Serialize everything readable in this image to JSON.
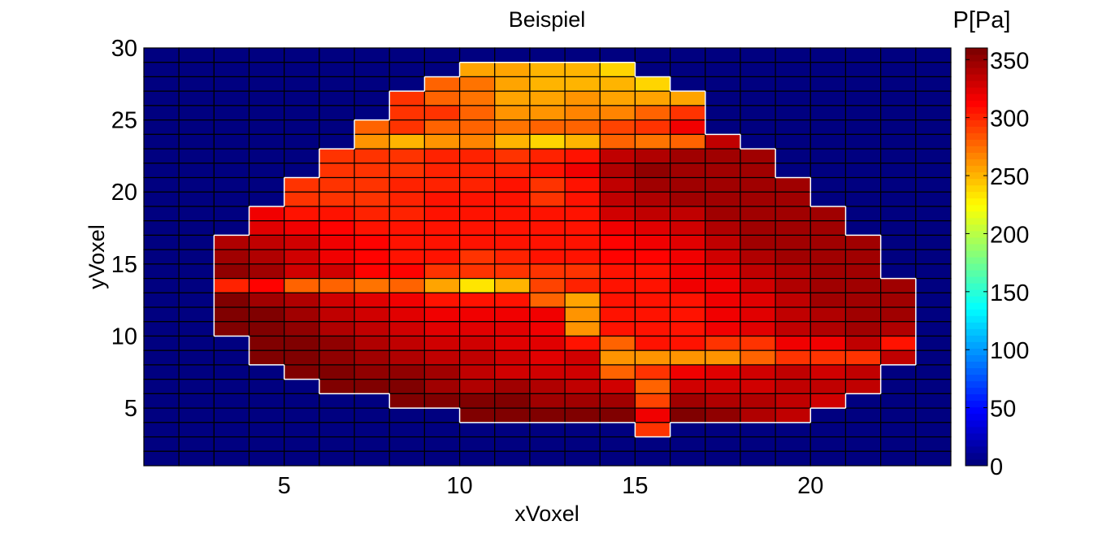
{
  "chart_data": {
    "type": "heatmap",
    "title": "Beispiel",
    "xlabel": "xVoxel",
    "ylabel": "yVoxel",
    "xlim": [
      1,
      24
    ],
    "ylim": [
      1,
      30
    ],
    "xticks": [
      5,
      10,
      15,
      20
    ],
    "yticks": [
      5,
      10,
      15,
      20,
      25,
      30
    ],
    "colormap": "jet",
    "clim": [
      0,
      360
    ],
    "colorbar": {
      "label": "P[Pa]",
      "ticks": [
        0,
        50,
        100,
        150,
        200,
        250,
        300,
        350
      ]
    },
    "grid": true,
    "values": [
      [
        0,
        0,
        0,
        0,
        0,
        0,
        0,
        0,
        0,
        0,
        0,
        0,
        0,
        0,
        0,
        0,
        0,
        0,
        0,
        0,
        0,
        0,
        0
      ],
      [
        0,
        0,
        0,
        0,
        0,
        0,
        0,
        0,
        0,
        258,
        256,
        253,
        250,
        241,
        0,
        0,
        0,
        0,
        0,
        0,
        0,
        0,
        0
      ],
      [
        0,
        0,
        0,
        0,
        0,
        0,
        0,
        0,
        281,
        270,
        258,
        253,
        253,
        248,
        241,
        0,
        0,
        0,
        0,
        0,
        0,
        0,
        0
      ],
      [
        0,
        0,
        0,
        0,
        0,
        0,
        0,
        293,
        281,
        273,
        258,
        258,
        261,
        256,
        258,
        258,
        0,
        0,
        0,
        0,
        0,
        0,
        0
      ],
      [
        0,
        0,
        0,
        0,
        0,
        0,
        0,
        298,
        293,
        281,
        264,
        264,
        267,
        267,
        276,
        293,
        0,
        0,
        0,
        0,
        0,
        0,
        0
      ],
      [
        0,
        0,
        0,
        0,
        0,
        0,
        281,
        293,
        276,
        276,
        270,
        276,
        281,
        287,
        293,
        315,
        0,
        0,
        0,
        0,
        0,
        0,
        0
      ],
      [
        0,
        0,
        0,
        0,
        0,
        0,
        264,
        253,
        264,
        267,
        250,
        238,
        248,
        276,
        273,
        276,
        333,
        0,
        0,
        0,
        0,
        0,
        0
      ],
      [
        0,
        0,
        0,
        0,
        0,
        298,
        298,
        298,
        301,
        301,
        298,
        301,
        308,
        333,
        339,
        345,
        345,
        345,
        0,
        0,
        0,
        0,
        0
      ],
      [
        0,
        0,
        0,
        0,
        0,
        298,
        298,
        298,
        301,
        301,
        301,
        304,
        315,
        339,
        351,
        345,
        345,
        345,
        0,
        0,
        0,
        0,
        0
      ],
      [
        0,
        0,
        0,
        0,
        295,
        298,
        298,
        301,
        301,
        301,
        304,
        298,
        308,
        333,
        345,
        345,
        345,
        345,
        345,
        0,
        0,
        0,
        0
      ],
      [
        0,
        0,
        0,
        0,
        298,
        298,
        298,
        301,
        304,
        304,
        304,
        298,
        304,
        333,
        339,
        345,
        345,
        345,
        345,
        0,
        0,
        0,
        0
      ],
      [
        0,
        0,
        0,
        315,
        307,
        304,
        301,
        301,
        304,
        307,
        307,
        304,
        305,
        327,
        333,
        333,
        345,
        345,
        345,
        345,
        0,
        0,
        0
      ],
      [
        0,
        0,
        0,
        321,
        315,
        310,
        307,
        307,
        307,
        307,
        307,
        307,
        307,
        315,
        321,
        327,
        339,
        345,
        345,
        345,
        0,
        0,
        0
      ],
      [
        0,
        0,
        339,
        333,
        327,
        315,
        310,
        307,
        307,
        307,
        307,
        307,
        307,
        310,
        315,
        321,
        333,
        345,
        345,
        345,
        345,
        0,
        0
      ],
      [
        0,
        0,
        345,
        339,
        327,
        315,
        310,
        307,
        304,
        298,
        301,
        304,
        305,
        310,
        310,
        315,
        327,
        339,
        345,
        345,
        345,
        0,
        0
      ],
      [
        0,
        0,
        351,
        345,
        327,
        327,
        310,
        310,
        298,
        293,
        298,
        295,
        298,
        307,
        307,
        315,
        321,
        333,
        339,
        345,
        345,
        0,
        0
      ],
      [
        0,
        0,
        301,
        310,
        281,
        281,
        273,
        276,
        258,
        236,
        250,
        287,
        300,
        307,
        307,
        315,
        315,
        327,
        339,
        345,
        345,
        345,
        0
      ],
      [
        0,
        0,
        360,
        345,
        339,
        327,
        321,
        315,
        304,
        304,
        304,
        281,
        258,
        307,
        307,
        307,
        315,
        321,
        333,
        345,
        345,
        345,
        0
      ],
      [
        0,
        0,
        360,
        357,
        345,
        333,
        327,
        321,
        315,
        315,
        315,
        315,
        264,
        307,
        307,
        307,
        315,
        321,
        333,
        339,
        345,
        345,
        0
      ],
      [
        0,
        0,
        360,
        360,
        351,
        339,
        333,
        327,
        321,
        321,
        321,
        315,
        264,
        307,
        307,
        307,
        315,
        321,
        333,
        339,
        345,
        339,
        0
      ],
      [
        0,
        0,
        0,
        360,
        357,
        351,
        339,
        333,
        327,
        327,
        321,
        321,
        304,
        281,
        307,
        307,
        298,
        298,
        315,
        315,
        333,
        307,
        0
      ],
      [
        0,
        0,
        0,
        360,
        360,
        351,
        345,
        339,
        333,
        333,
        327,
        321,
        327,
        264,
        264,
        264,
        264,
        276,
        293,
        295,
        295,
        333,
        0
      ],
      [
        0,
        0,
        0,
        0,
        360,
        357,
        351,
        351,
        345,
        333,
        327,
        327,
        327,
        281,
        293,
        315,
        321,
        327,
        333,
        327,
        333,
        0,
        0
      ],
      [
        0,
        0,
        0,
        0,
        0,
        357,
        357,
        360,
        345,
        339,
        345,
        339,
        333,
        327,
        276,
        327,
        327,
        327,
        333,
        333,
        333,
        0,
        0
      ],
      [
        0,
        0,
        0,
        0,
        0,
        0,
        0,
        360,
        357,
        360,
        355,
        348,
        348,
        348,
        287,
        345,
        339,
        339,
        333,
        327,
        0,
        0,
        0
      ],
      [
        0,
        0,
        0,
        0,
        0,
        0,
        0,
        0,
        0,
        360,
        357,
        360,
        360,
        357,
        315,
        360,
        351,
        339,
        333,
        0,
        0,
        0,
        0
      ],
      [
        0,
        0,
        0,
        0,
        0,
        0,
        0,
        0,
        0,
        0,
        0,
        0,
        0,
        0,
        293,
        0,
        0,
        0,
        0,
        0,
        0,
        0,
        0
      ],
      [
        0,
        0,
        0,
        0,
        0,
        0,
        0,
        0,
        0,
        0,
        0,
        0,
        0,
        0,
        0,
        0,
        0,
        0,
        0,
        0,
        0,
        0,
        0
      ],
      [
        0,
        0,
        0,
        0,
        0,
        0,
        0,
        0,
        0,
        0,
        0,
        0,
        0,
        0,
        0,
        0,
        0,
        0,
        0,
        0,
        0,
        0,
        0
      ]
    ]
  }
}
